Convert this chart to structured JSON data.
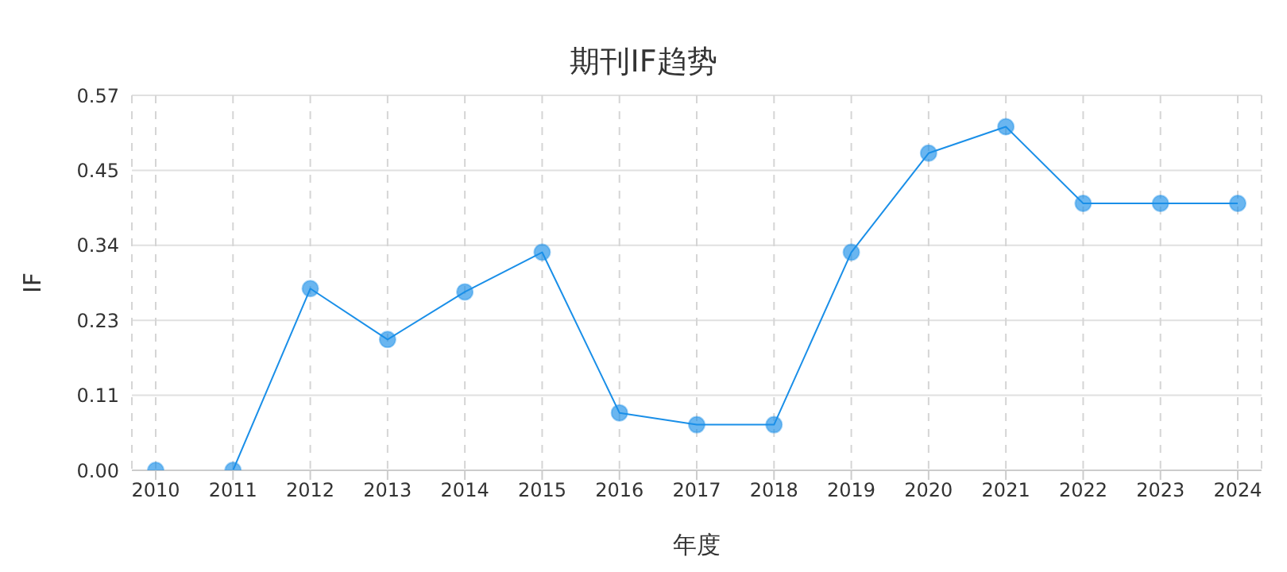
{
  "chart_data": {
    "type": "line",
    "title": "期刊IF趋势",
    "xlabel": "年度",
    "ylabel": "IF",
    "categories": [
      "2010",
      "2011",
      "2012",
      "2013",
      "2014",
      "2015",
      "2016",
      "2017",
      "2018",
      "2019",
      "2020",
      "2021",
      "2022",
      "2023",
      "2024"
    ],
    "series": [
      {
        "color": "#1a8fe8",
        "values": [
          0,
          0,
          0.275,
          0.198,
          0.27,
          0.33,
          0.087,
          0.069,
          0.069,
          0.33,
          0.48,
          0.52,
          0.404,
          0.404,
          0.404
        ]
      }
    ],
    "ylim": [
      0,
      0.5675
    ],
    "yticks": [
      {
        "value": 0,
        "label": "0.00"
      },
      {
        "value": 0.1135,
        "label": "0.11"
      },
      {
        "value": 0.227,
        "label": "0.23"
      },
      {
        "value": 0.3405,
        "label": "0.34"
      },
      {
        "value": 0.454,
        "label": "0.45"
      },
      {
        "value": 0.5675,
        "label": "0.57"
      }
    ],
    "grid": true,
    "marker": "circle",
    "line_style": "solid"
  }
}
